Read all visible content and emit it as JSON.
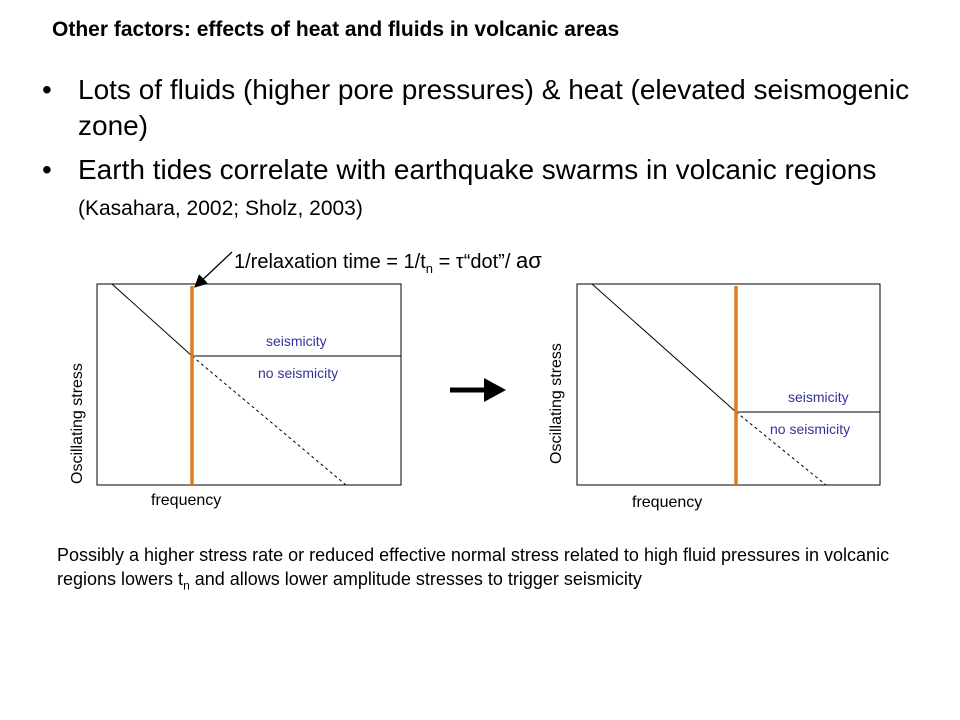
{
  "title": "Other factors: effects of heat and fluids in volcanic areas",
  "bullets": {
    "bullet_symbol": "•",
    "item1": "Lots of fluids (higher pore pressures) & heat (elevated seismogenic zone)",
    "item2_main": "Earth tides correlate with earthquake swarms in volcanic regions",
    "item2_ref": "(Kasahara, 2002; Sholz, 2003)"
  },
  "formula": {
    "part1": "1/relaxation time = 1/t",
    "sub1": "n",
    "part2": " = τ“dot”/ ",
    "part3": "aσ"
  },
  "diagram_left": {
    "ylabel": "Oscillating stress",
    "xlabel": "frequency",
    "upper_label": "seismicity",
    "lower_label": "no seismicity"
  },
  "diagram_right": {
    "ylabel": "Oscillating stress",
    "xlabel": "frequency",
    "upper_label": "seismicity",
    "lower_label": "no seismicity"
  },
  "caption": {
    "part1": "Possibly a higher stress rate or reduced effective normal stress related to high fluid pressures in volcanic regions lowers t",
    "sub": "n",
    "part2": " and allows lower amplitude stresses to trigger seismicity"
  },
  "colors": {
    "vertical_line": "#E07B1C",
    "region_text": "#333399",
    "lines": "#000000"
  }
}
